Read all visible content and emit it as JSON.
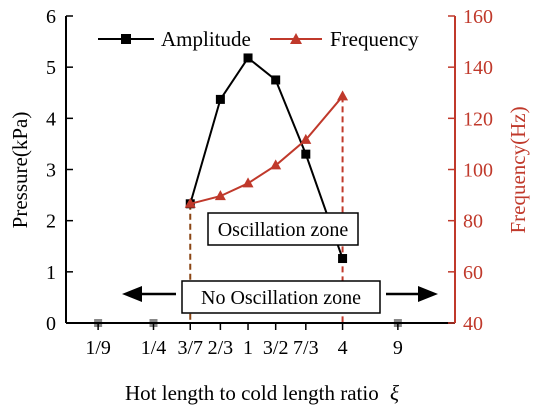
{
  "chart_data": {
    "type": "line",
    "xlabel": "Hot length to cold length ratio",
    "xlabel_symbol": "ξ",
    "ylabel": "Pressure(kPa)",
    "y2label": "Frequency(Hz)",
    "ylim": [
      0,
      6
    ],
    "y2lim": [
      40,
      160
    ],
    "y_ticks": [
      0,
      1,
      2,
      3,
      4,
      5,
      6
    ],
    "y2_ticks": [
      40,
      60,
      80,
      100,
      120,
      140,
      160
    ],
    "x_ticks": [
      {
        "x": 0.111,
        "label": "1/9"
      },
      {
        "x": 0.25,
        "label": "1/4"
      },
      {
        "x": 0.4286,
        "label": "3/7"
      },
      {
        "x": 0.6667,
        "label": "2/3"
      },
      {
        "x": 1.0,
        "label": "1"
      },
      {
        "x": 1.5,
        "label": "3/2"
      },
      {
        "x": 2.3333,
        "label": "7/3"
      },
      {
        "x": 4.0,
        "label": "4"
      },
      {
        "x": 9.0,
        "label": "9"
      }
    ],
    "x_scale": "log",
    "series": [
      {
        "name": "Amplitude",
        "axis": "left",
        "color": "#000000",
        "marker": "square",
        "x": [
          0.4286,
          0.6667,
          1.0,
          1.5,
          2.3333,
          4.0
        ],
        "values": [
          2.33,
          4.37,
          5.18,
          4.75,
          3.3,
          1.26
        ]
      },
      {
        "name": "Frequency",
        "axis": "right",
        "color": "#c0392b",
        "marker": "triangle",
        "x": [
          0.4286,
          0.6667,
          1.0,
          1.5,
          2.3333,
          4.0
        ],
        "values": [
          86.6,
          89.6,
          94.6,
          101.6,
          111.6,
          128.6
        ]
      }
    ],
    "zero_points": {
      "x": [
        0.111,
        0.25,
        9.0
      ],
      "values": [
        0,
        0,
        0
      ],
      "color": "#888888"
    },
    "annotations": {
      "oscillation_zone": "Oscillation zone",
      "no_oscillation_zone": "No Oscillation zone"
    },
    "legend_position": "top",
    "grid": false
  }
}
